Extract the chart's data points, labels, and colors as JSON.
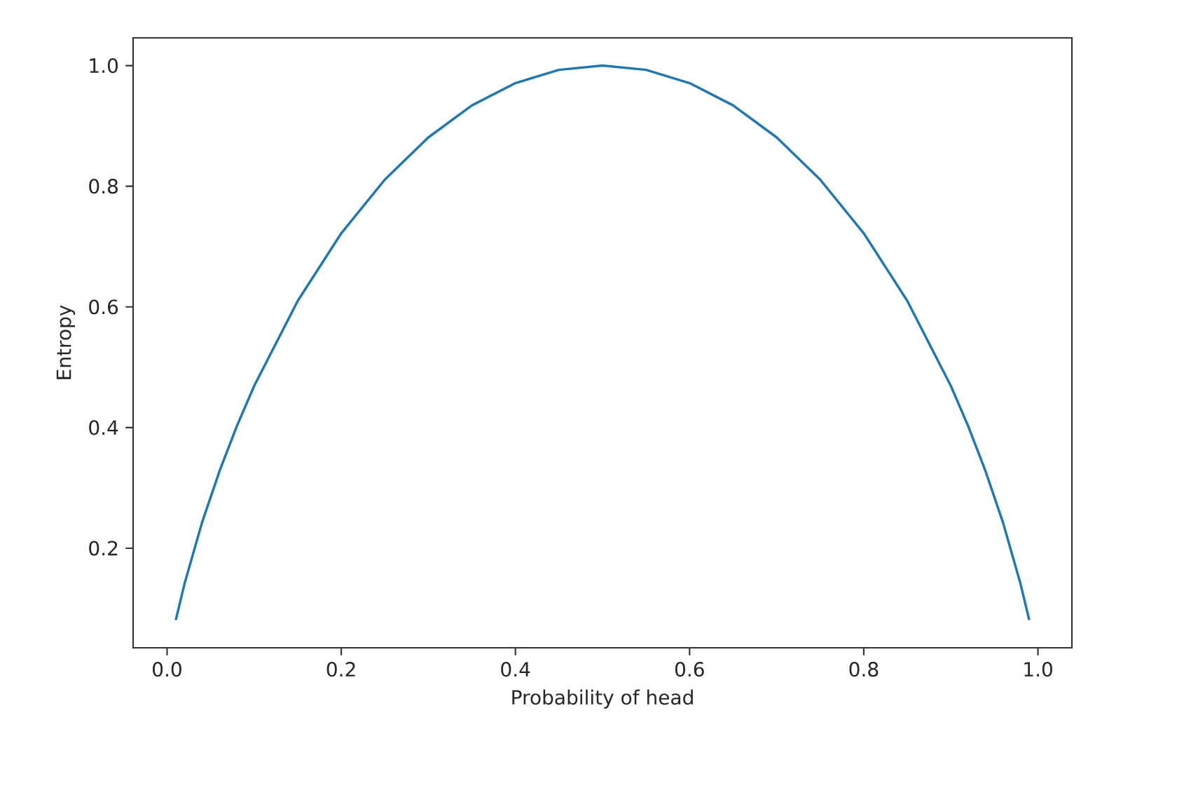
{
  "chart_data": {
    "type": "line",
    "xlabel": "Probability of head",
    "ylabel": "Entropy",
    "x": [
      0.01,
      0.02,
      0.04,
      0.06,
      0.08,
      0.1,
      0.15,
      0.2,
      0.25,
      0.3,
      0.35,
      0.4,
      0.45,
      0.5,
      0.55,
      0.6,
      0.65,
      0.7,
      0.75,
      0.8,
      0.85,
      0.9,
      0.92,
      0.94,
      0.96,
      0.98,
      0.99
    ],
    "series": [
      {
        "color": "#1f77b4",
        "values": [
          0.081,
          0.141,
          0.242,
          0.327,
          0.402,
          0.469,
          0.61,
          0.722,
          0.811,
          0.881,
          0.934,
          0.971,
          0.993,
          1.0,
          0.993,
          0.971,
          0.934,
          0.881,
          0.811,
          0.722,
          0.61,
          0.469,
          0.402,
          0.327,
          0.242,
          0.141,
          0.081
        ]
      }
    ],
    "xlim": [
      -0.039,
      1.039
    ],
    "ylim": [
      0.035,
      1.046
    ],
    "xticks": [
      {
        "value": 0,
        "label": "0.0"
      },
      0.2,
      0.4,
      0.6,
      0.8,
      {
        "value": 1,
        "label": "1.0"
      }
    ],
    "yticks": [
      0.2,
      0.4,
      0.6,
      0.8,
      {
        "value": 1,
        "label": "1.0"
      }
    ],
    "grid": false,
    "marker": "none",
    "line_style": "solid"
  }
}
